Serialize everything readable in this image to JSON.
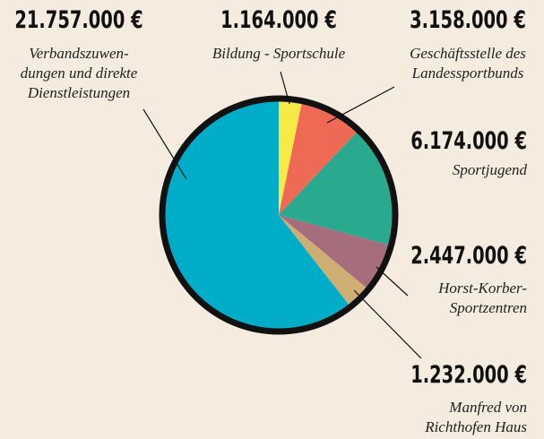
{
  "chart_data": {
    "type": "pie",
    "categories": [
      "Bildung - Sportschule",
      "Geschäftsstelle des\nLandessportbunds",
      "Sportjugend",
      "Horst-Korber-\nSportzentren",
      "Manfred von\nRichthofen Haus",
      "Verbandszuwen-\ndungen und direkte\nDienstleistungen"
    ],
    "values": [
      1164000,
      3158000,
      6174000,
      2447000,
      1232000,
      21757000
    ],
    "value_labels": [
      "1.164.000 €",
      "3.158.000 €",
      "6.174.000 €",
      "2.447.000 €",
      "1.232.000 €",
      "21.757.000 €"
    ],
    "colors": [
      "#f7ea47",
      "#ee6a55",
      "#29aa8e",
      "#a66e7c",
      "#cfae74",
      "#00adc9"
    ]
  }
}
